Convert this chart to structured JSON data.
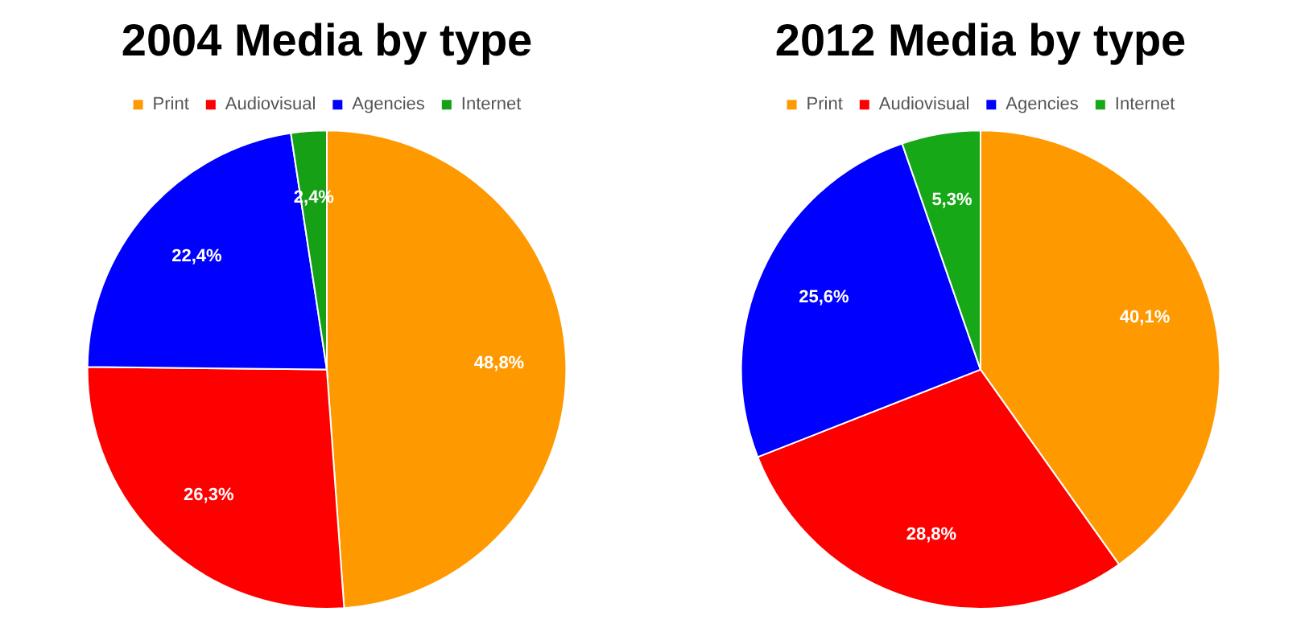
{
  "chart_data": [
    {
      "type": "pie",
      "title": "2004 Media by type",
      "categories": [
        "Print",
        "Audiovisual",
        "Agencies",
        "Internet"
      ],
      "values": [
        48.8,
        26.3,
        22.4,
        2.4
      ],
      "colors": [
        "#ff9900",
        "#ff0000",
        "#0000ff",
        "#16a016"
      ],
      "value_labels": [
        "48,8%",
        "26,3%",
        "22,4%",
        "2,4%"
      ],
      "legend": "top"
    },
    {
      "type": "pie",
      "title": "2012 Media by type",
      "categories": [
        "Print",
        "Audiovisual",
        "Agencies",
        "Internet"
      ],
      "values": [
        40.1,
        28.8,
        25.6,
        5.3
      ],
      "colors": [
        "#ff9900",
        "#ff0000",
        "#0000ff",
        "#16a816"
      ],
      "value_labels": [
        "40,1%",
        "28,8%",
        "25,6%",
        "5,3%"
      ],
      "legend": "top"
    }
  ]
}
